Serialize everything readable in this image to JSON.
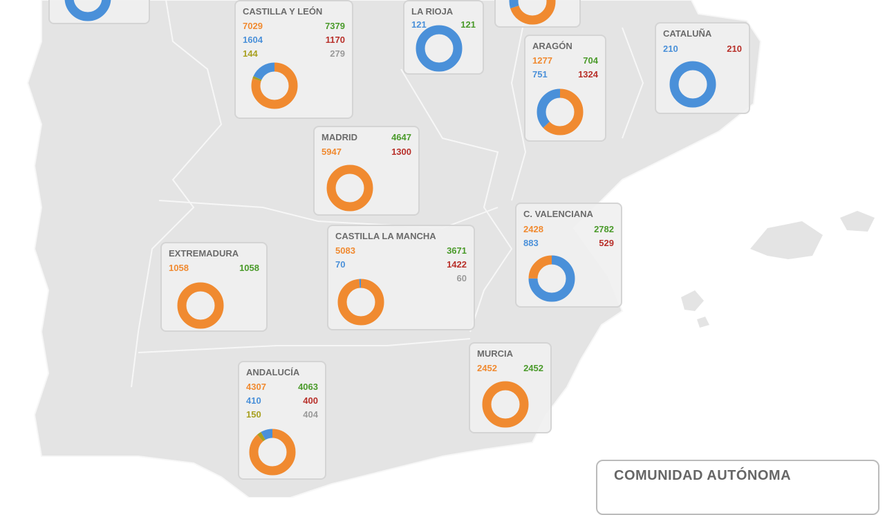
{
  "colors": {
    "orange": "#f08a30",
    "green": "#4a9a2a",
    "blue": "#4a90d9",
    "red": "#b8302a",
    "olive": "#a8a020",
    "gray": "#9a9a9a",
    "land": "#e4e4e4",
    "border": "#f7f7f7"
  },
  "regions": [
    {
      "id": "top-left",
      "title": "",
      "rows": [],
      "donut": [
        {
          "c": "blue",
          "value": 1
        }
      ]
    },
    {
      "id": "castilla-y-leon",
      "title": "CASTILLA Y LEÓN",
      "rows": [
        [
          {
            "v": "7029",
            "c": "orange"
          },
          {
            "v": "7379",
            "c": "green"
          }
        ],
        [
          {
            "v": "1604",
            "c": "blue"
          },
          {
            "v": "1170",
            "c": "red"
          }
        ],
        [
          {
            "v": "144",
            "c": "olive"
          },
          {
            "v": "279",
            "c": "gray"
          }
        ]
      ],
      "donut": [
        {
          "c": "orange",
          "value": 7029
        },
        {
          "c": "olive",
          "value": 144
        },
        {
          "c": "blue",
          "value": 1604
        }
      ]
    },
    {
      "id": "la-rioja",
      "title": "LA RIOJA",
      "rows": [
        [
          {
            "v": "121",
            "c": "blue"
          },
          {
            "v": "121",
            "c": "green"
          }
        ]
      ],
      "donut": [
        {
          "c": "blue",
          "value": 121
        }
      ]
    },
    {
      "id": "top-right",
      "title": "",
      "rows": [],
      "donut": [
        {
          "c": "orange",
          "value": 70
        },
        {
          "c": "blue",
          "value": 30
        }
      ]
    },
    {
      "id": "aragon",
      "title": "ARAGÓN",
      "rows": [
        [
          {
            "v": "1277",
            "c": "orange"
          },
          {
            "v": "704",
            "c": "green"
          }
        ],
        [
          {
            "v": "751",
            "c": "blue"
          },
          {
            "v": "1324",
            "c": "red"
          }
        ]
      ],
      "donut": [
        {
          "c": "orange",
          "value": 1277
        },
        {
          "c": "blue",
          "value": 751
        }
      ]
    },
    {
      "id": "cataluna",
      "title": "CATALUÑA",
      "rows": [
        [
          {
            "v": "210",
            "c": "blue"
          },
          {
            "v": "210",
            "c": "red"
          }
        ]
      ],
      "donut": [
        {
          "c": "blue",
          "value": 210
        }
      ]
    },
    {
      "id": "madrid",
      "title": "MADRID",
      "title_right": {
        "v": "4647",
        "c": "green"
      },
      "rows": [
        [
          {
            "v": "5947",
            "c": "orange"
          },
          {
            "v": "1300",
            "c": "red"
          }
        ]
      ],
      "donut": [
        {
          "c": "orange",
          "value": 5947
        }
      ]
    },
    {
      "id": "c-valenciana",
      "title": "C. VALENCIANA",
      "rows": [
        [
          {
            "v": "2428",
            "c": "orange"
          },
          {
            "v": "2782",
            "c": "green"
          }
        ],
        [
          {
            "v": "883",
            "c": "blue"
          },
          {
            "v": "529",
            "c": "red"
          }
        ]
      ],
      "donut": [
        {
          "c": "blue",
          "value": 75
        },
        {
          "c": "orange",
          "value": 25
        }
      ]
    },
    {
      "id": "extremadura",
      "title": "EXTREMADURA",
      "rows": [
        [
          {
            "v": "1058",
            "c": "orange"
          },
          {
            "v": "1058",
            "c": "green"
          }
        ]
      ],
      "donut": [
        {
          "c": "orange",
          "value": 1058
        }
      ]
    },
    {
      "id": "castilla-la-mancha",
      "title": "CASTILLA LA MANCHA",
      "rows": [
        [
          {
            "v": "5083",
            "c": "orange"
          },
          {
            "v": "3671",
            "c": "green"
          }
        ],
        [
          {
            "v": "70",
            "c": "blue"
          },
          {
            "v": "1422",
            "c": "red"
          }
        ],
        [
          null,
          {
            "v": "60",
            "c": "gray"
          }
        ]
      ],
      "donut": [
        {
          "c": "orange",
          "value": 5083
        },
        {
          "c": "blue",
          "value": 70
        }
      ]
    },
    {
      "id": "murcia",
      "title": "MURCIA",
      "rows": [
        [
          {
            "v": "2452",
            "c": "orange"
          },
          {
            "v": "2452",
            "c": "green"
          }
        ]
      ],
      "donut": [
        {
          "c": "orange",
          "value": 2452
        }
      ]
    },
    {
      "id": "andalucia",
      "title": "ANDALUCÍA",
      "rows": [
        [
          {
            "v": "4307",
            "c": "orange"
          },
          {
            "v": "4063",
            "c": "green"
          }
        ],
        [
          {
            "v": "410",
            "c": "blue"
          },
          {
            "v": "400",
            "c": "red"
          }
        ],
        [
          {
            "v": "150",
            "c": "olive"
          },
          {
            "v": "404",
            "c": "gray"
          }
        ]
      ],
      "donut": [
        {
          "c": "orange",
          "value": 4307
        },
        {
          "c": "olive",
          "value": 150
        },
        {
          "c": "blue",
          "value": 410
        }
      ]
    }
  ],
  "legend": {
    "title": "COMUNIDAD AUTÓNOMA"
  }
}
